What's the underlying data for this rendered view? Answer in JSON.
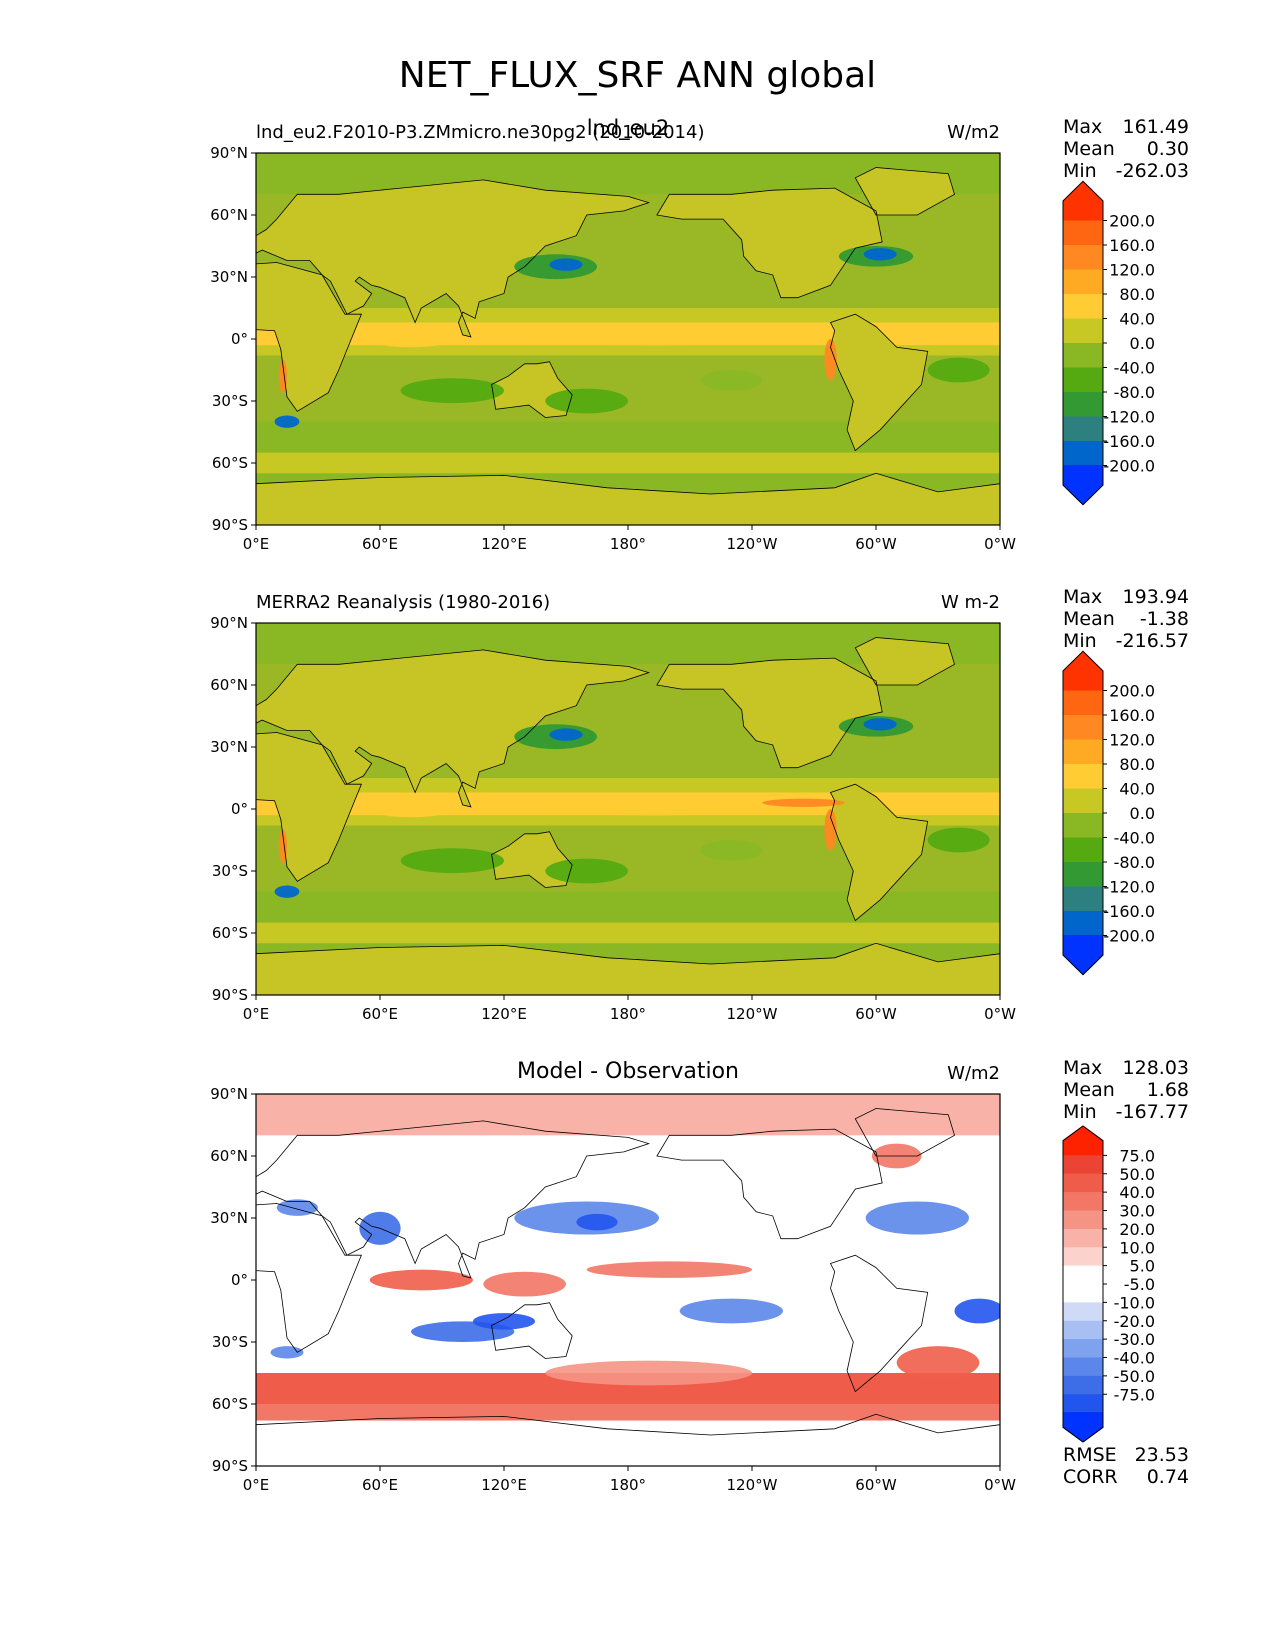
{
  "figure": {
    "title": "NET_FLUX_SRF ANN global"
  },
  "colors": {
    "abs_levels": [
      "#0033ff",
      "#0066cc",
      "#2e8080",
      "#339933",
      "#55aa11",
      "#8ab825",
      "#c8c824",
      "#ffcc33",
      "#ffaa22",
      "#ff8822",
      "#ff6611",
      "#ff3300"
    ],
    "diff_levels": [
      "#0033ff",
      "#2255ee",
      "#3d6ee8",
      "#5b87ea",
      "#7ea2ee",
      "#a7bff2",
      "#cfdaf6",
      "#ffffff",
      "#ffffff",
      "#fbd3cc",
      "#f8b2a7",
      "#f59384",
      "#f27766",
      "#ef5d4a",
      "#ec4434",
      "#ff2200"
    ],
    "ocean_base": "#9ab826",
    "land_base": "#c6c525"
  },
  "chart_data": [
    {
      "type": "heatmap",
      "panel": "test",
      "left_label": "lnd_eu2.F2010-P3.ZMmicro.ne30pg2 (2010-2014)",
      "center_label": "lnd_eu2",
      "units": "W/m2",
      "stats": {
        "max_label": "Max",
        "max": "161.49",
        "mean_label": "Mean",
        "mean": "0.30",
        "min_label": "Min",
        "min": "-262.03"
      },
      "levels": [
        "200.0",
        "160.0",
        "120.0",
        "80.0",
        "40.0",
        "0.0",
        "-40.0",
        "-80.0",
        "-120.0",
        "-160.0",
        "-200.0"
      ],
      "x_ticks": [
        "0°E",
        "60°E",
        "120°E",
        "180°",
        "120°W",
        "60°W",
        "0°W"
      ],
      "y_ticks": [
        "90°N",
        "60°N",
        "30°N",
        "0°",
        "30°S",
        "60°S",
        "90°S"
      ],
      "xlim": [
        0,
        360
      ],
      "ylim": [
        -90,
        90
      ]
    },
    {
      "type": "heatmap",
      "panel": "reference",
      "left_label": "MERRA2 Reanalysis (1980-2016)",
      "center_label": "",
      "units": "W m-2",
      "stats": {
        "max_label": "Max",
        "max": "193.94",
        "mean_label": "Mean",
        "mean": "-1.38",
        "min_label": "Min",
        "min": "-216.57"
      },
      "levels": [
        "200.0",
        "160.0",
        "120.0",
        "80.0",
        "40.0",
        "0.0",
        "-40.0",
        "-80.0",
        "-120.0",
        "-160.0",
        "-200.0"
      ],
      "x_ticks": [
        "0°E",
        "60°E",
        "120°E",
        "180°",
        "120°W",
        "60°W",
        "0°W"
      ],
      "y_ticks": [
        "90°N",
        "60°N",
        "30°N",
        "0°",
        "30°S",
        "60°S",
        "90°S"
      ],
      "xlim": [
        0,
        360
      ],
      "ylim": [
        -90,
        90
      ]
    },
    {
      "type": "heatmap",
      "panel": "difference",
      "left_label": "",
      "center_label": "Model - Observation",
      "units": "W/m2",
      "stats": {
        "max_label": "Max",
        "max": "128.03",
        "mean_label": "Mean",
        "mean": "1.68",
        "min_label": "Min",
        "min": "-167.77"
      },
      "levels": [
        "75.0",
        "50.0",
        "40.0",
        "30.0",
        "20.0",
        "10.0",
        "5.0",
        "-5.0",
        "-10.0",
        "-20.0",
        "-30.0",
        "-40.0",
        "-50.0",
        "-75.0"
      ],
      "rmse_label": "RMSE",
      "rmse": "23.53",
      "corr_label": "CORR",
      "corr": "0.74",
      "x_ticks": [
        "0°E",
        "60°E",
        "120°E",
        "180°",
        "120°W",
        "60°W",
        "0°W"
      ],
      "y_ticks": [
        "90°N",
        "60°N",
        "30°N",
        "0°",
        "30°S",
        "60°S",
        "90°S"
      ],
      "xlim": [
        0,
        360
      ],
      "ylim": [
        -90,
        90
      ]
    }
  ]
}
